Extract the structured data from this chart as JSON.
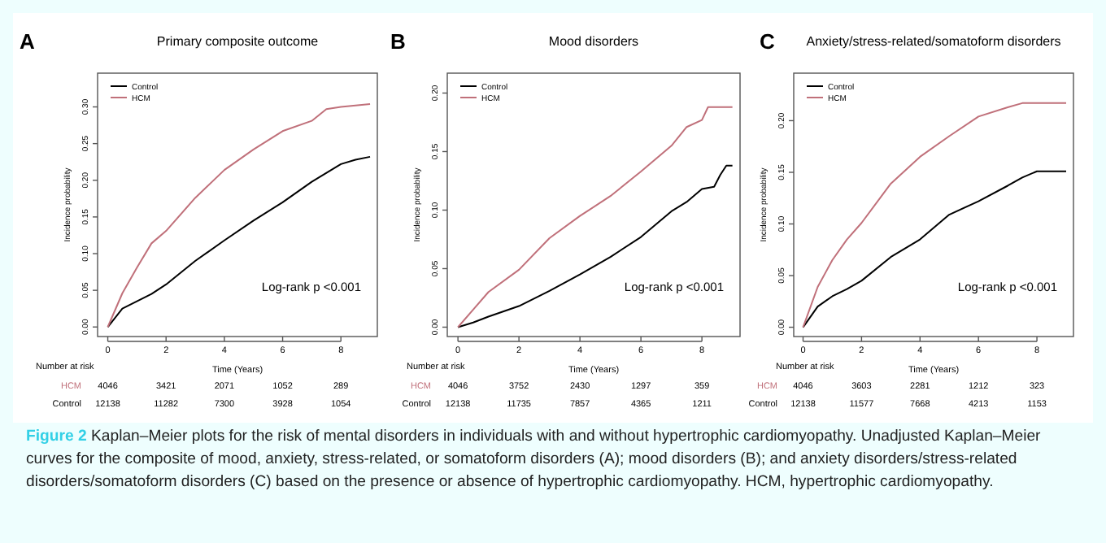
{
  "chart_data": [
    {
      "type": "line",
      "title": "Primary composite outcome",
      "xlabel": "Time (Years)",
      "ylabel": "Incidence probability",
      "xlim": [
        -0.35,
        9.25
      ],
      "xticks": [
        0,
        2,
        4,
        6,
        8
      ],
      "ylim": [
        -0.013,
        0.346
      ],
      "yticks": [
        {
          "value": 0,
          "label": "0.00"
        },
        {
          "value": 0.05,
          "label": "0.05"
        },
        {
          "value": 0.1,
          "label": "0.10"
        },
        {
          "value": 0.15,
          "label": "0.15"
        },
        {
          "value": 0.2,
          "label": "0.20"
        },
        {
          "value": 0.25,
          "label": "0.25"
        },
        {
          "value": 0.3,
          "label": "0.30"
        }
      ],
      "legend": "top left",
      "grid": false,
      "marker": "none",
      "line_style": "solid",
      "series": [
        {
          "name": "Control",
          "color": "#000000",
          "x": [
            0,
            0.5,
            1,
            1.5,
            2,
            3,
            4,
            5,
            6,
            7,
            8,
            8.5,
            9
          ],
          "values": [
            0,
            0.025,
            0.035,
            0.045,
            0.058,
            0.09,
            0.118,
            0.145,
            0.17,
            0.198,
            0.222,
            0.228,
            0.232
          ]
        },
        {
          "name": "HCM",
          "color": "#c0707a",
          "x": [
            0,
            0.5,
            1,
            1.5,
            2,
            3,
            4,
            5,
            6,
            7,
            7.5,
            8,
            9
          ],
          "values": [
            0,
            0.046,
            0.081,
            0.114,
            0.131,
            0.176,
            0.214,
            0.242,
            0.267,
            0.281,
            0.297,
            0.3,
            0.304
          ]
        }
      ],
      "annotations": [
        "A",
        "Log-rank p <0.001",
        "Number at risk",
        "HCM 4046 3421 2071 1052 289",
        "Control 12138 11282 7300 3928 1054",
        "Figure 2 Kaplan–Meier plots for the risk of mental disorders in individuals with and without hypertrophic cardiomyopathy. Unadjusted Kaplan–Meier curves for the composite of mood, anxiety, stress-related, or somatoform disorders (A); mood disorders (B); and anxiety disorders/stress-related disorders/somatoform disorders (C) based on the presence or absence of hypertrophic cardiomyopathy. HCM, hypertrophic cardiomyopathy."
      ]
    },
    {
      "type": "line",
      "title": "Mood disorders",
      "xlabel": "Time (Years)",
      "ylabel": "Incidence probability",
      "xlim": [
        -0.35,
        9.25
      ],
      "xticks": [
        0,
        2,
        4,
        6,
        8
      ],
      "ylim": [
        -0.008,
        0.217
      ],
      "yticks": [
        {
          "value": 0,
          "label": "0.00"
        },
        {
          "value": 0.05,
          "label": "0.05"
        },
        {
          "value": 0.1,
          "label": "0.10"
        },
        {
          "value": 0.15,
          "label": "0.15"
        },
        {
          "value": 0.2,
          "label": "0.20"
        }
      ],
      "legend": "top left",
      "grid": false,
      "marker": "none",
      "line_style": "solid",
      "series": [
        {
          "name": "Control",
          "color": "#000000",
          "x": [
            0,
            0.5,
            1,
            2,
            3,
            4,
            5,
            6,
            7,
            7.5,
            8,
            8.4,
            8.6,
            8.8,
            9
          ],
          "values": [
            0,
            0.004,
            0.009,
            0.018,
            0.031,
            0.045,
            0.06,
            0.077,
            0.099,
            0.107,
            0.118,
            0.12,
            0.13,
            0.138,
            0.138
          ]
        },
        {
          "name": "HCM",
          "color": "#c0707a",
          "x": [
            0,
            0.5,
            1,
            2,
            3,
            4,
            5,
            6,
            7,
            7.5,
            8,
            8.2,
            9
          ],
          "values": [
            0,
            0.015,
            0.03,
            0.049,
            0.076,
            0.095,
            0.112,
            0.133,
            0.155,
            0.171,
            0.177,
            0.188,
            0.188
          ]
        }
      ],
      "annotations": [
        "B",
        "Log-rank p <0.001",
        "Number at risk",
        "HCM 4046 3752 2430 1297 359",
        "Control 12138 11735 7857 4365 1211"
      ]
    },
    {
      "type": "line",
      "title": "Anxiety/stress-related/somatoform disorders",
      "xlabel": "Time (Years)",
      "ylabel": "Incidence probability",
      "xlim": [
        -0.32,
        9.25
      ],
      "xticks": [
        0,
        2,
        4,
        6,
        8
      ],
      "ylim": [
        -0.009,
        0.246
      ],
      "yticks": [
        {
          "value": 0,
          "label": "0.00"
        },
        {
          "value": 0.05,
          "label": "0.05"
        },
        {
          "value": 0.1,
          "label": "0.10"
        },
        {
          "value": 0.15,
          "label": "0.15"
        },
        {
          "value": 0.2,
          "label": "0.20"
        }
      ],
      "legend": "top left",
      "grid": false,
      "marker": "none",
      "line_style": "solid",
      "series": [
        {
          "name": "Control",
          "color": "#000000",
          "x": [
            0,
            0.5,
            1,
            1.5,
            2,
            3,
            4,
            5,
            6,
            7,
            7.5,
            8,
            9
          ],
          "values": [
            0,
            0.02,
            0.03,
            0.037,
            0.045,
            0.068,
            0.085,
            0.109,
            0.122,
            0.137,
            0.145,
            0.151,
            0.151
          ]
        },
        {
          "name": "HCM",
          "color": "#c0707a",
          "x": [
            0,
            0.5,
            1,
            1.5,
            2,
            3,
            4,
            5,
            6,
            7,
            7.5,
            9
          ],
          "values": [
            0,
            0.039,
            0.065,
            0.085,
            0.101,
            0.139,
            0.165,
            0.185,
            0.204,
            0.213,
            0.217,
            0.217
          ]
        }
      ],
      "annotations": [
        "C",
        "Log-rank p <0.001",
        "Number at risk",
        "HCM 4046 3603 2281 1212 323",
        "Control 12138 11577 7668 4213 1153"
      ]
    }
  ]
}
